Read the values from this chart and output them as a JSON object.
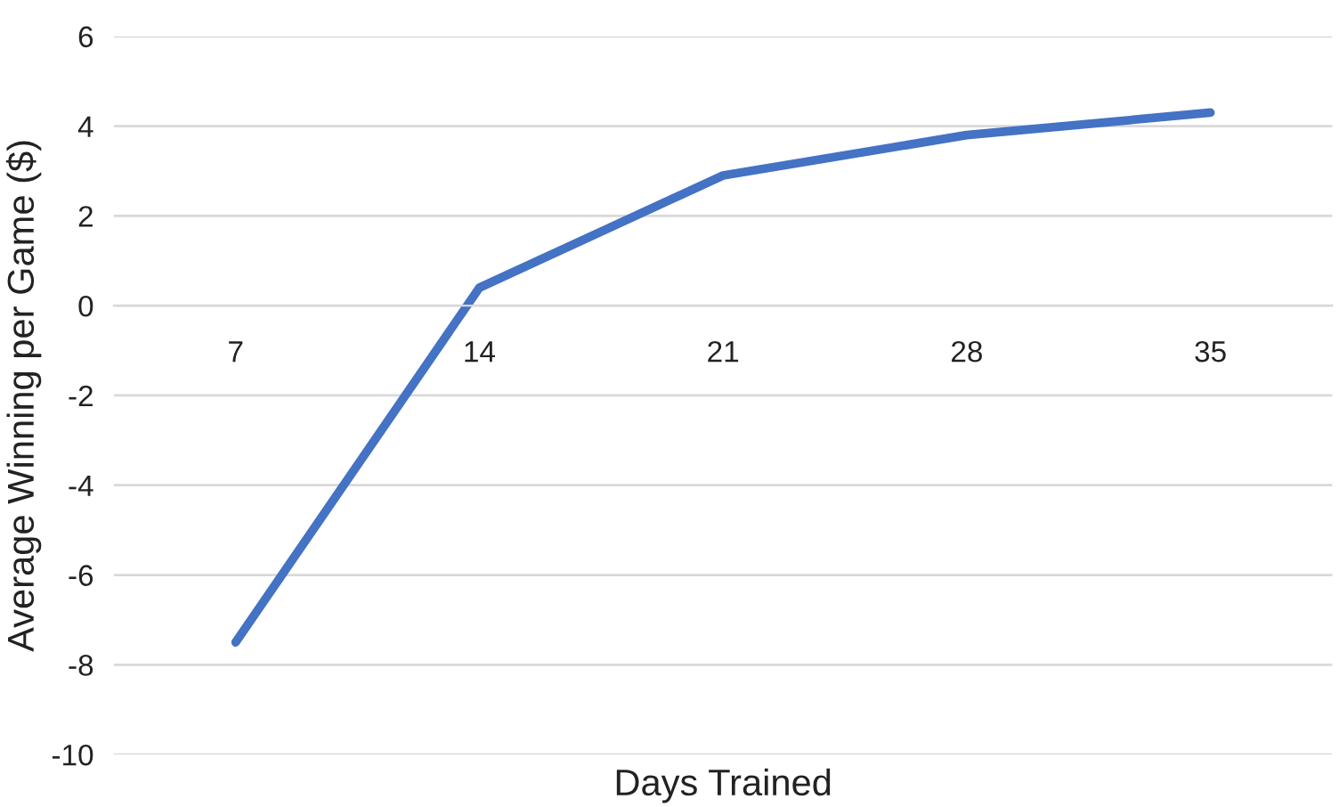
{
  "chart_data": {
    "type": "line",
    "xlabel": "Days Trained",
    "ylabel": "Average Winning per Game ($)",
    "categories": [
      "7",
      "14",
      "21",
      "28",
      "35"
    ],
    "series": [
      {
        "color": "#4472c4",
        "values": [
          -7.5,
          0.4,
          2.9,
          3.8,
          4.3
        ]
      }
    ],
    "ylim": [
      -10,
      6
    ],
    "yticks": [
      -10,
      -8,
      -6,
      -4,
      -2,
      0,
      2,
      4,
      6
    ],
    "grid": "y",
    "marker": "none",
    "line_style": "solid"
  }
}
